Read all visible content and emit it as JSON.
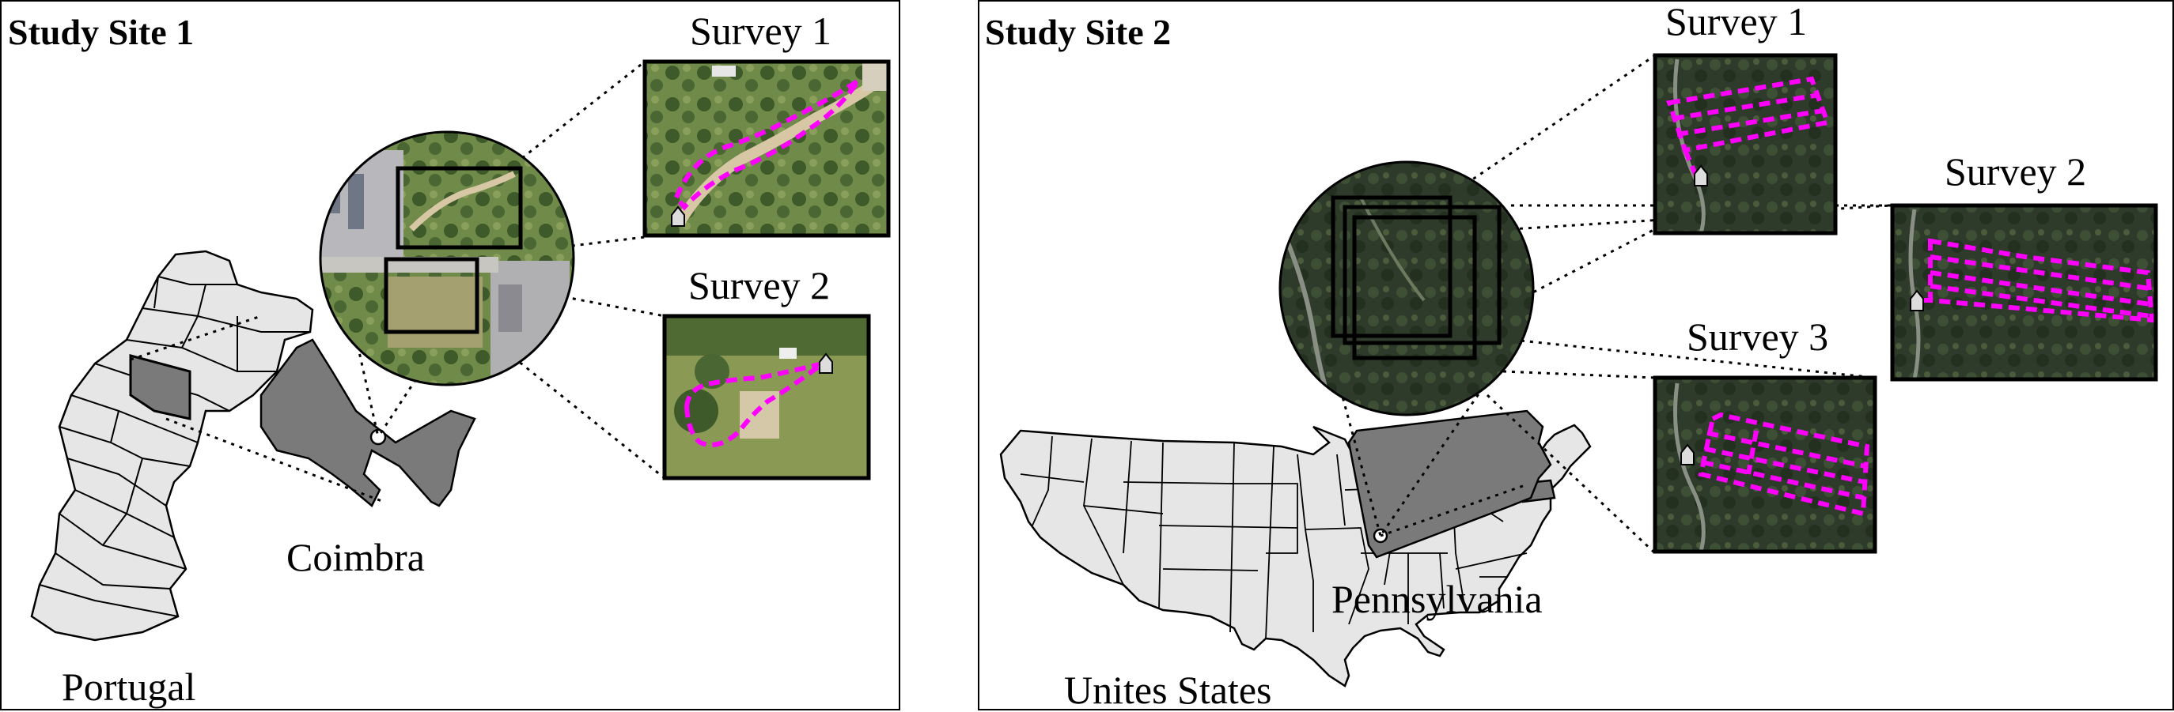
{
  "site1": {
    "title": "Study Site 1",
    "survey1_label": "Survey 1",
    "survey2_label": "Survey 2",
    "region_label": "Coimbra",
    "country_label": "Portugal"
  },
  "site2": {
    "title": "Study Site 2",
    "survey1_label": "Survey 1",
    "survey2_label": "Survey 2",
    "survey3_label": "Survey 3",
    "region_label": "Pennsylvania",
    "country_label": "Unites States"
  },
  "colors": {
    "flight_path": "#ff00ff",
    "region_fill": "#7a7a7a",
    "map_fill": "#e6e6e6",
    "vegetation_site1": "#5d7a3c",
    "forest_site2": "#2f3b2a"
  }
}
